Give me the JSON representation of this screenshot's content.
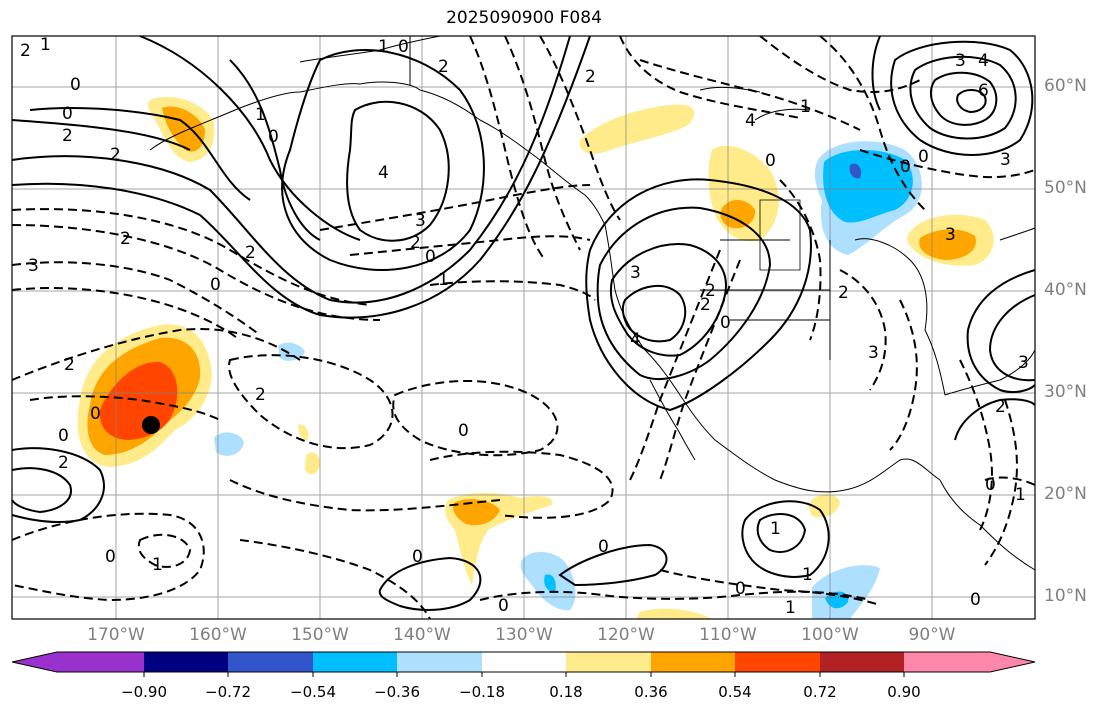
{
  "title": "2025090900 F084",
  "lat_labels": [
    "60°N",
    "50°N",
    "40°N",
    "30°N",
    "20°N",
    "10°N"
  ],
  "lon_labels": [
    "170°W",
    "160°W",
    "150°W",
    "140°W",
    "130°W",
    "120°W",
    "110°W",
    "100°W",
    "90°W"
  ],
  "colorbar": {
    "colors": [
      "#9932CC",
      "#000080",
      "#3355CC",
      "#00BFFF",
      "#ADDFFF",
      "#FFFFFF",
      "#FFEB8A",
      "#FFA500",
      "#FF4500",
      "#B22222",
      "#FF88AA"
    ],
    "tick_labels": [
      "−0.90",
      "−0.72",
      "−0.54",
      "−0.36",
      "−0.18",
      "0.18",
      "0.36",
      "0.54",
      "0.72",
      "0.90"
    ]
  },
  "contour_labels": [
    "0",
    "2",
    "2",
    "0",
    "2",
    "3",
    "0",
    "4",
    "3",
    "2",
    "0",
    "1",
    "0",
    "0",
    "2",
    "1",
    "1",
    "0",
    "2",
    "0",
    "0",
    "0",
    "1",
    "3",
    "2",
    "4",
    "4",
    "2",
    "0",
    "0",
    "1",
    "1",
    "0",
    "6",
    "3",
    "0",
    "0",
    "0",
    "3",
    "2",
    "2",
    "3",
    "2",
    "0",
    "2",
    "4",
    "3",
    "1",
    "0",
    "0",
    "0",
    "1",
    "2",
    "1",
    "2",
    "2",
    "3",
    "1"
  ],
  "marker": "storm-center"
}
